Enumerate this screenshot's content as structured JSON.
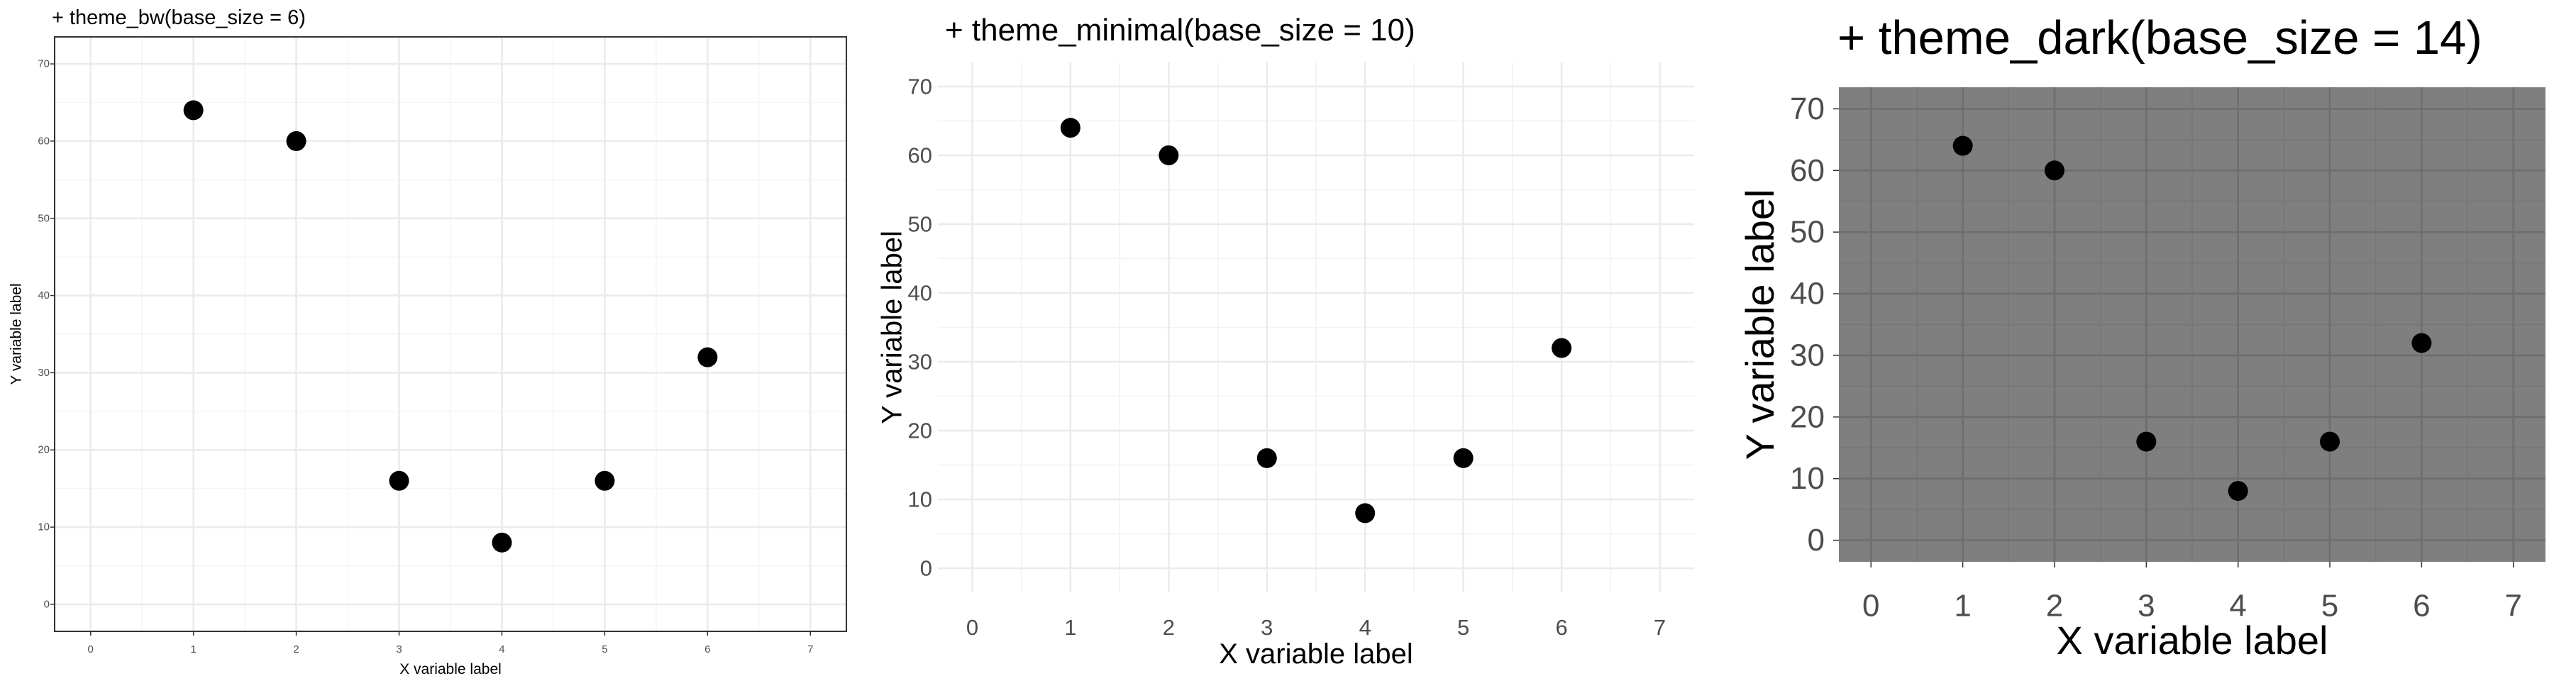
{
  "chart_data": [
    {
      "type": "scatter",
      "theme": "bw",
      "title": "+ theme_bw(base_size = 6)",
      "xlabel": "X variable label",
      "ylabel": "Y variable label",
      "xlim": [
        -0.35,
        7.35
      ],
      "ylim": [
        -3.5,
        73.5
      ],
      "x_ticks": [
        0,
        1,
        2,
        3,
        4,
        5,
        6,
        7
      ],
      "y_ticks": [
        0,
        10,
        20,
        30,
        40,
        50,
        60,
        70
      ],
      "grid": true,
      "colors": {
        "background": "#ffffff",
        "panel": "#ffffff",
        "grid_major": "#ebebeb",
        "grid_minor": "#f5f5f5",
        "border": "#333333",
        "point": "#000000",
        "tick_text": "#4d4d4d"
      },
      "x": [
        1,
        2,
        3,
        4,
        5,
        6
      ],
      "y": [
        64,
        60,
        16,
        8,
        16,
        32
      ]
    },
    {
      "type": "scatter",
      "theme": "minimal",
      "title": "+ theme_minimal(base_size = 10)",
      "xlabel": "X variable label",
      "ylabel": "Y variable label",
      "xlim": [
        -0.35,
        7.35
      ],
      "ylim": [
        -3.5,
        73.5
      ],
      "x_ticks": [
        0,
        1,
        2,
        3,
        4,
        5,
        6,
        7
      ],
      "y_ticks": [
        0,
        10,
        20,
        30,
        40,
        50,
        60,
        70
      ],
      "grid": true,
      "colors": {
        "background": "#ffffff",
        "panel": "#ffffff",
        "grid_major": "#ebebeb",
        "grid_minor": "#f2f2f2",
        "point": "#000000",
        "tick_text": "#4d4d4d"
      },
      "x": [
        1,
        2,
        3,
        4,
        5,
        6
      ],
      "y": [
        64,
        60,
        16,
        8,
        16,
        32
      ]
    },
    {
      "type": "scatter",
      "theme": "dark",
      "title": "+ theme_dark(base_size = 14)",
      "xlabel": "X variable label",
      "ylabel": "Y variable label",
      "xlim": [
        -0.35,
        7.35
      ],
      "ylim": [
        -3.5,
        73.5
      ],
      "x_ticks": [
        0,
        1,
        2,
        3,
        4,
        5,
        6,
        7
      ],
      "y_ticks": [
        0,
        10,
        20,
        30,
        40,
        50,
        60,
        70
      ],
      "grid": true,
      "colors": {
        "background": "#ffffff",
        "panel": "#7f7f7f",
        "grid_major": "#6e6e6e",
        "grid_minor": "#767676",
        "point": "#000000",
        "tick_text": "#4d4d4d"
      },
      "x": [
        1,
        2,
        3,
        4,
        5,
        6
      ],
      "y": [
        64,
        60,
        16,
        8,
        16,
        32
      ]
    }
  ]
}
